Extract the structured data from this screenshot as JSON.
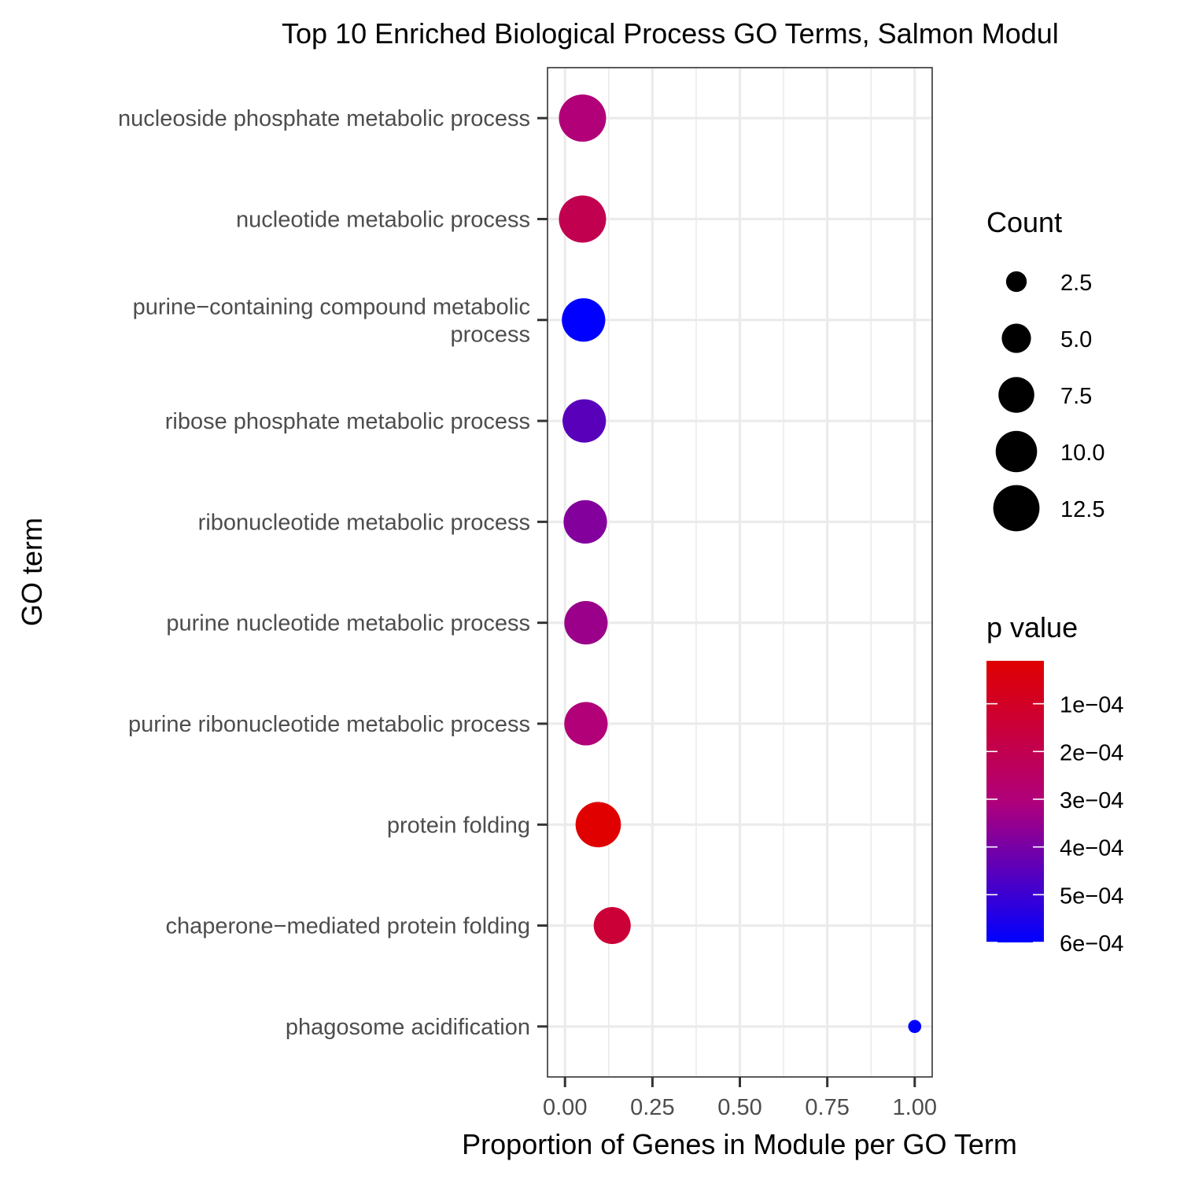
{
  "chart_data": {
    "type": "scatter",
    "title": "Top 10 Enriched Biological Process GO Terms, Salmon Modul",
    "xlabel": "Proportion of Genes in Module per GO Term",
    "ylabel": "GO term",
    "xlim": [
      -0.05,
      1.05
    ],
    "x_ticks": [
      "0.00",
      "0.25",
      "0.50",
      "0.75",
      "1.00"
    ],
    "x_tick_values": [
      0,
      0.25,
      0.5,
      0.75,
      1.0
    ],
    "grid": true,
    "categories": [
      [
        "nucleoside phosphate metabolic process"
      ],
      [
        "nucleotide metabolic process"
      ],
      [
        "purine−containing compound metabolic",
        "process"
      ],
      [
        "ribose phosphate metabolic process"
      ],
      [
        "ribonucleotide metabolic process"
      ],
      [
        "purine nucleotide metabolic process"
      ],
      [
        "purine ribonucleotide metabolic process"
      ],
      [
        "protein folding"
      ],
      [
        "chaperone−mediated protein folding"
      ],
      [
        "phagosome acidification"
      ]
    ],
    "points": [
      {
        "x": 0.05,
        "count": 13,
        "p": 0.0003
      },
      {
        "x": 0.05,
        "count": 13,
        "p": 0.0002
      },
      {
        "x": 0.053,
        "count": 11,
        "p": 0.0006
      },
      {
        "x": 0.055,
        "count": 11,
        "p": 0.00045
      },
      {
        "x": 0.058,
        "count": 11,
        "p": 0.00038
      },
      {
        "x": 0.06,
        "count": 11,
        "p": 0.00034
      },
      {
        "x": 0.06,
        "count": 11,
        "p": 0.0003
      },
      {
        "x": 0.095,
        "count": 12,
        "p": 1e-05
      },
      {
        "x": 0.135,
        "count": 8,
        "p": 0.00014
      },
      {
        "x": 1.0,
        "count": 1,
        "p": 0.0006
      }
    ],
    "size_legend": {
      "title": "Count",
      "values": [
        2.5,
        5.0,
        7.5,
        10.0,
        12.5
      ],
      "labels": [
        "2.5",
        "5.0",
        "7.5",
        "10.0",
        "12.5"
      ]
    },
    "color_legend": {
      "title": "p value",
      "range": [
        1e-05,
        0.0006
      ],
      "low_color": "#e00000",
      "high_color": "#0000ff",
      "tick_values": [
        0.0001,
        0.0002,
        0.0003,
        0.0004,
        0.0005,
        0.0006
      ],
      "tick_labels": [
        "1e−04",
        "2e−04",
        "3e−04",
        "4e−04",
        "5e−04",
        "6e−04"
      ]
    }
  }
}
